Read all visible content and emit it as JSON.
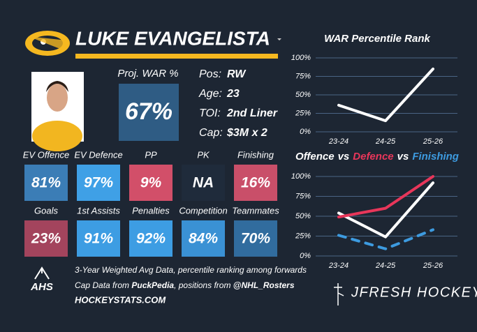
{
  "player": {
    "name": "LUKE EVANGELISTA",
    "proj_war_label": "Proj. WAR %",
    "proj_war": "67%",
    "info": [
      [
        "Pos:",
        "RW"
      ],
      [
        "Age:",
        "23"
      ],
      [
        "TOI:",
        "2nd Liner"
      ],
      [
        "Cap:",
        "$3M x 2"
      ]
    ]
  },
  "tiles": [
    {
      "label": "EV Offence",
      "value": "81%",
      "color": "#3b7db6"
    },
    {
      "label": "EV Defence",
      "value": "97%",
      "color": "#3fa0e6"
    },
    {
      "label": "PP",
      "value": "9%",
      "color": "#d24f69"
    },
    {
      "label": "PK",
      "value": "NA",
      "color": "#1f2b3b"
    },
    {
      "label": "Finishing",
      "value": "16%",
      "color": "#c94f69"
    },
    {
      "label": "Goals",
      "value": "23%",
      "color": "#a3445d"
    },
    {
      "label": "1st Assists",
      "value": "91%",
      "color": "#3d9de3"
    },
    {
      "label": "Penalties",
      "value": "92%",
      "color": "#3d9de3"
    },
    {
      "label": "Competition",
      "value": "84%",
      "color": "#3a91d4"
    },
    {
      "label": "Teammates",
      "value": "70%",
      "color": "#316c9e"
    }
  ],
  "footer": {
    "logo": "AHS",
    "line1": "3-Year Weighted Avg Data, percentile ranking among forwards",
    "line2": [
      {
        "text": "Cap Data from ",
        "bold": false
      },
      {
        "text": "PuckPedia",
        "bold": true
      },
      {
        "text": ", positions from ",
        "bold": false
      },
      {
        "text": "@NHL_Rosters",
        "bold": true
      }
    ],
    "site": "HOCKEYSTATS.COM",
    "brand": "JFRESH HOCKEY"
  },
  "chart_data": [
    {
      "type": "line",
      "title": "WAR Percentile Rank",
      "categories": [
        "23-24",
        "24-25",
        "25-26"
      ],
      "series": [
        {
          "color": "#ffffff",
          "values": [
            36,
            15,
            85
          ]
        }
      ],
      "ylim": [
        0,
        100
      ],
      "yticks": [
        {
          "value": 0,
          "label": "0%"
        },
        {
          "value": 25,
          "label": "25%"
        },
        {
          "value": 50,
          "label": "50%"
        },
        {
          "value": 75,
          "label": "75%"
        },
        {
          "value": 100,
          "label": "100%"
        }
      ],
      "grid": true
    },
    {
      "type": "line",
      "title_joiner": "vs",
      "categories": [
        "23-24",
        "24-25",
        "25-26"
      ],
      "series": [
        {
          "name": "Offence",
          "color": "#ffffff",
          "values": [
            54,
            24,
            92
          ],
          "dashed": false
        },
        {
          "name": "Defence",
          "color": "#e8365a",
          "values": [
            49,
            60,
            100
          ],
          "dashed": false
        },
        {
          "name": "Finishing",
          "color": "#3d9be0",
          "values": [
            26,
            9,
            33
          ],
          "dashed": true
        }
      ],
      "ylim": [
        0,
        100
      ],
      "yticks": [
        {
          "value": 0,
          "label": "0%"
        },
        {
          "value": 25,
          "label": "25%"
        },
        {
          "value": 50,
          "label": "50%"
        },
        {
          "value": 75,
          "label": "75%"
        },
        {
          "value": 100,
          "label": "100%"
        }
      ],
      "grid": true
    }
  ]
}
